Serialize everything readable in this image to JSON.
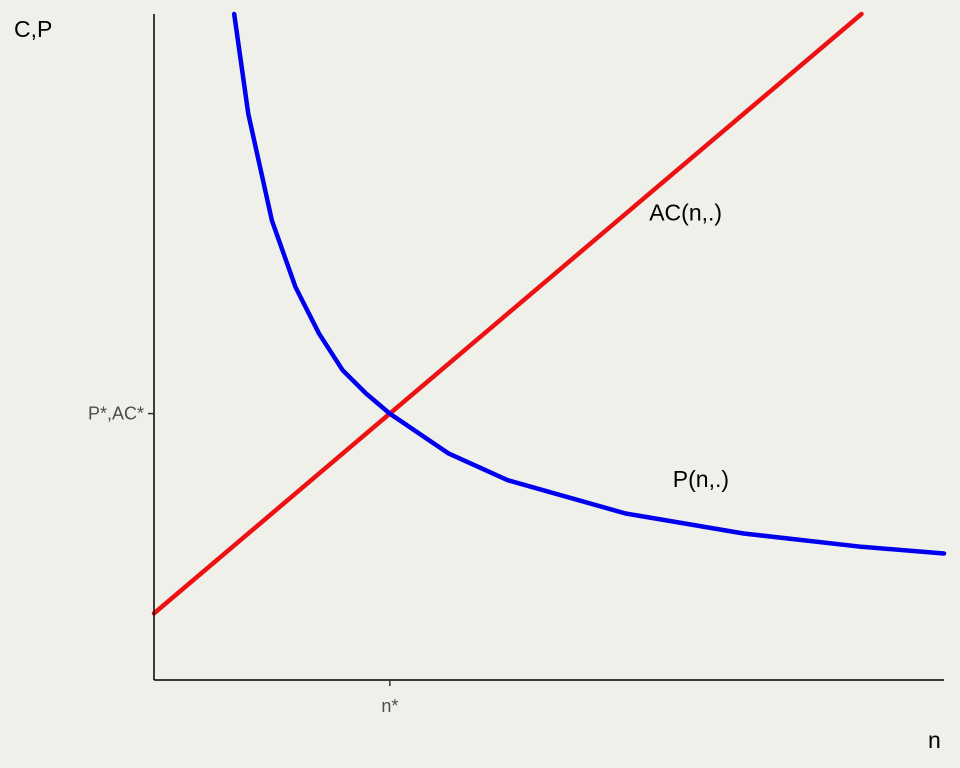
{
  "chart_data": {
    "type": "line",
    "ylabel": "C,P",
    "xlabel": "n",
    "xlim": [
      0,
      3.35
    ],
    "ylim": [
      0,
      10
    ],
    "grid": false,
    "legend": "none",
    "x_ticks": [
      {
        "value": 1,
        "label": "n*"
      }
    ],
    "y_ticks": [
      {
        "value": 4,
        "label": "P*,AC*"
      }
    ],
    "series": [
      {
        "name": "AC(n,.)",
        "color": "#ee1111",
        "x": [
          0,
          0.5,
          1,
          1.5,
          2,
          2.5,
          3
        ],
        "y": [
          1,
          2.5,
          4,
          5.5,
          7,
          8.5,
          10
        ],
        "label_at": [
          2.1,
          6.9
        ]
      },
      {
        "name": "P(n,.)",
        "color": "#0000ee",
        "x": [
          0.34,
          0.4,
          0.5,
          0.6,
          0.7,
          0.8,
          0.9,
          1,
          1.25,
          1.5,
          2,
          2.5,
          3,
          3.35
        ],
        "y": [
          10,
          8.5,
          6.9,
          5.9,
          5.2,
          4.65,
          4.3,
          4,
          3.4,
          3,
          2.5,
          2.2,
          2.0,
          1.9
        ],
        "label_at": [
          2.2,
          2.9
        ]
      }
    ]
  }
}
